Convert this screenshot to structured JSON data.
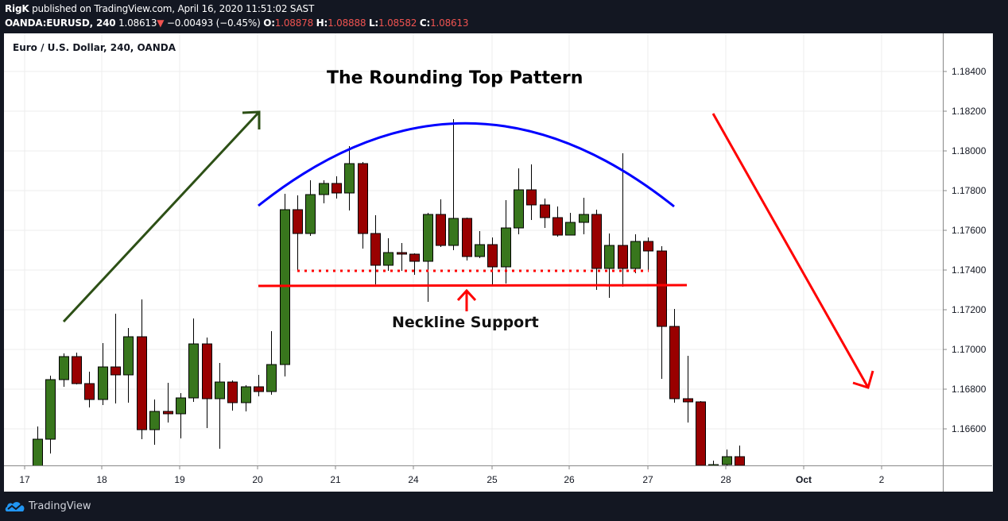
{
  "header": {
    "author": "RigK",
    "published": "published on TradingView.com, April 16, 2020 11:51:02 SAST",
    "symbol": "OANDA:EURUSD, 240",
    "last": "1.08613",
    "change": "−0.00493 (−0.45%)",
    "o_label": "O:",
    "o": "1.08878",
    "h_label": "H:",
    "h": "1.08888",
    "l_label": "L:",
    "l": "1.08582",
    "c_label": "C:",
    "c": "1.08613",
    "down_arrow": "▼"
  },
  "chart_title": "Euro / U.S. Dollar, 240, OANDA",
  "footer": {
    "brand": "TradingView",
    "icon": "tradingview-cloud-icon"
  },
  "annotations": {
    "title": "The Rounding Top Pattern",
    "neckline_label": "Neckline Support",
    "colors": {
      "uptrend_arrow": "#2d5016",
      "downtrend_arrow": "#ff0000",
      "arc": "#0000ff",
      "neckline": "#ff0000",
      "up_candle": "#38761d",
      "down_candle": "#990000"
    }
  },
  "chart_data": {
    "type": "candlestick",
    "title": "The Rounding Top Pattern",
    "instrument": "Euro / U.S. Dollar, 240, OANDA",
    "xlabel": "",
    "ylabel": "",
    "ylim": [
      1.1633,
      1.1862
    ],
    "y_ticks": [
      "1.18400",
      "1.18200",
      "1.18000",
      "1.17800",
      "1.17600",
      "1.17400",
      "1.17200",
      "1.17000",
      "1.16800",
      "1.16600"
    ],
    "x_ticks": [
      "17",
      "18",
      "19",
      "20",
      "21",
      "24",
      "25",
      "26",
      "27",
      "28",
      "Oct",
      "2"
    ],
    "grid": true,
    "neckline": 1.1732,
    "neckline_dotted": 1.1739,
    "candles": [
      {
        "o": 1.16412,
        "h": 1.16612,
        "l": 1.164,
        "c": 1.16548
      },
      {
        "o": 1.16548,
        "h": 1.16868,
        "l": 1.16476,
        "c": 1.16848
      },
      {
        "o": 1.16848,
        "h": 1.1698,
        "l": 1.16812,
        "c": 1.16964
      },
      {
        "o": 1.16964,
        "h": 1.16984,
        "l": 1.16824,
        "c": 1.16828
      },
      {
        "o": 1.16828,
        "h": 1.16888,
        "l": 1.16708,
        "c": 1.16748
      },
      {
        "o": 1.16748,
        "h": 1.17032,
        "l": 1.1672,
        "c": 1.16912
      },
      {
        "o": 1.16912,
        "h": 1.1718,
        "l": 1.16728,
        "c": 1.16872
      },
      {
        "o": 1.16872,
        "h": 1.17108,
        "l": 1.16732,
        "c": 1.17064
      },
      {
        "o": 1.17064,
        "h": 1.17252,
        "l": 1.16548,
        "c": 1.16596
      },
      {
        "o": 1.16596,
        "h": 1.16748,
        "l": 1.1652,
        "c": 1.16688
      },
      {
        "o": 1.16688,
        "h": 1.16832,
        "l": 1.16632,
        "c": 1.16676
      },
      {
        "o": 1.16676,
        "h": 1.1678,
        "l": 1.16552,
        "c": 1.16756
      },
      {
        "o": 1.16756,
        "h": 1.17156,
        "l": 1.16736,
        "c": 1.17028
      },
      {
        "o": 1.17028,
        "h": 1.1706,
        "l": 1.16604,
        "c": 1.16752
      },
      {
        "o": 1.16752,
        "h": 1.16932,
        "l": 1.165,
        "c": 1.16836
      },
      {
        "o": 1.16836,
        "h": 1.16844,
        "l": 1.16692,
        "c": 1.16732
      },
      {
        "o": 1.16732,
        "h": 1.1682,
        "l": 1.16688,
        "c": 1.16812
      },
      {
        "o": 1.16812,
        "h": 1.16872,
        "l": 1.16764,
        "c": 1.16788
      },
      {
        "o": 1.16788,
        "h": 1.17092,
        "l": 1.16772,
        "c": 1.16924
      },
      {
        "o": 1.16924,
        "h": 1.17784,
        "l": 1.16864,
        "c": 1.17704
      },
      {
        "o": 1.17704,
        "h": 1.17776,
        "l": 1.17396,
        "c": 1.17584
      },
      {
        "o": 1.17584,
        "h": 1.17852,
        "l": 1.17572,
        "c": 1.1778
      },
      {
        "o": 1.1778,
        "h": 1.17852,
        "l": 1.17736,
        "c": 1.17836
      },
      {
        "o": 1.17836,
        "h": 1.17872,
        "l": 1.1776,
        "c": 1.17788
      },
      {
        "o": 1.17788,
        "h": 1.18024,
        "l": 1.177,
        "c": 1.17936
      },
      {
        "o": 1.17936,
        "h": 1.17944,
        "l": 1.17508,
        "c": 1.17584
      },
      {
        "o": 1.17584,
        "h": 1.17676,
        "l": 1.17328,
        "c": 1.17424
      },
      {
        "o": 1.17424,
        "h": 1.1756,
        "l": 1.17396,
        "c": 1.17488
      },
      {
        "o": 1.17488,
        "h": 1.17536,
        "l": 1.17396,
        "c": 1.1748
      },
      {
        "o": 1.1748,
        "h": 1.17484,
        "l": 1.17376,
        "c": 1.17444
      },
      {
        "o": 1.17444,
        "h": 1.17688,
        "l": 1.1724,
        "c": 1.1768
      },
      {
        "o": 1.1768,
        "h": 1.17756,
        "l": 1.17516,
        "c": 1.17524
      },
      {
        "o": 1.17524,
        "h": 1.1816,
        "l": 1.175,
        "c": 1.1766
      },
      {
        "o": 1.1766,
        "h": 1.17664,
        "l": 1.17448,
        "c": 1.17468
      },
      {
        "o": 1.17468,
        "h": 1.17596,
        "l": 1.1746,
        "c": 1.17528
      },
      {
        "o": 1.17528,
        "h": 1.17564,
        "l": 1.17328,
        "c": 1.17416
      },
      {
        "o": 1.17416,
        "h": 1.17752,
        "l": 1.17332,
        "c": 1.17612
      },
      {
        "o": 1.17612,
        "h": 1.17912,
        "l": 1.1758,
        "c": 1.17804
      },
      {
        "o": 1.17804,
        "h": 1.17932,
        "l": 1.17652,
        "c": 1.17728
      },
      {
        "o": 1.17728,
        "h": 1.1776,
        "l": 1.17612,
        "c": 1.17664
      },
      {
        "o": 1.17664,
        "h": 1.1772,
        "l": 1.17568,
        "c": 1.17576
      },
      {
        "o": 1.17576,
        "h": 1.17688,
        "l": 1.17576,
        "c": 1.1764
      },
      {
        "o": 1.1764,
        "h": 1.17764,
        "l": 1.1758,
        "c": 1.1768
      },
      {
        "o": 1.1768,
        "h": 1.17704,
        "l": 1.173,
        "c": 1.17408
      },
      {
        "o": 1.17408,
        "h": 1.17584,
        "l": 1.1726,
        "c": 1.17524
      },
      {
        "o": 1.17524,
        "h": 1.17988,
        "l": 1.17316,
        "c": 1.17408
      },
      {
        "o": 1.17408,
        "h": 1.1758,
        "l": 1.17384,
        "c": 1.17544
      },
      {
        "o": 1.17544,
        "h": 1.17564,
        "l": 1.17392,
        "c": 1.17496
      },
      {
        "o": 1.17496,
        "h": 1.1752,
        "l": 1.16852,
        "c": 1.17116
      },
      {
        "o": 1.17116,
        "h": 1.17204,
        "l": 1.16732,
        "c": 1.16752
      },
      {
        "o": 1.16752,
        "h": 1.16968,
        "l": 1.16632,
        "c": 1.16736
      },
      {
        "o": 1.16736,
        "h": 1.1674,
        "l": 1.1638,
        "c": 1.16416
      },
      {
        "o": 1.16416,
        "h": 1.1644,
        "l": 1.1638,
        "c": 1.1642
      },
      {
        "o": 1.1642,
        "h": 1.16496,
        "l": 1.164,
        "c": 1.1646
      },
      {
        "o": 1.1646,
        "h": 1.16516,
        "l": 1.1638,
        "c": 1.16416
      }
    ]
  }
}
